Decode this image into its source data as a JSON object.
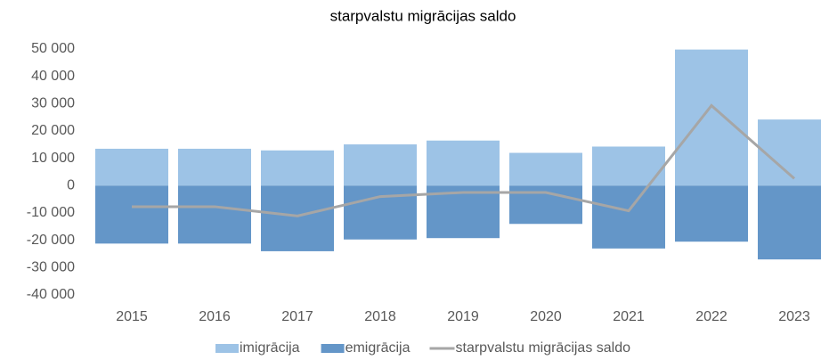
{
  "chart_data": {
    "type": "bar",
    "title": "starpvalstu migrācijas saldo",
    "categories": [
      "2015",
      "2016",
      "2017",
      "2018",
      "2019",
      "2020",
      "2021",
      "2022",
      "2023"
    ],
    "series": [
      {
        "name": "imigrācija",
        "color": "#9dc3e6",
        "type": "bar",
        "values": [
          13500,
          13500,
          12900,
          15100,
          16500,
          12000,
          14300,
          49800,
          24200
        ]
      },
      {
        "name": "emigrācija",
        "color": "#6496c8",
        "type": "bar",
        "values": [
          -21200,
          -21200,
          -24000,
          -19700,
          -19200,
          -14000,
          -23000,
          -20500,
          -27000
        ]
      },
      {
        "name": "starpvalstu migrācijas saldo",
        "color": "#a6a6a6",
        "type": "line",
        "values": [
          -7700,
          -7700,
          -11100,
          -4000,
          -2500,
          -2500,
          -9200,
          29300,
          2600
        ]
      }
    ],
    "ylim": [
      -40000,
      50000
    ],
    "yticks": [
      {
        "value": -40000,
        "label": "-40 000"
      },
      {
        "value": -30000,
        "label": "-30 000"
      },
      {
        "value": -20000,
        "label": "-20 000"
      },
      {
        "value": -10000,
        "label": "-10 000"
      },
      0,
      {
        "value": 10000,
        "label": "10 000"
      },
      {
        "value": 20000,
        "label": "20 000"
      },
      {
        "value": 30000,
        "label": "30 000"
      },
      {
        "value": 40000,
        "label": "40 000"
      },
      {
        "value": 50000,
        "label": "50 000"
      }
    ],
    "legend": "bottom"
  }
}
